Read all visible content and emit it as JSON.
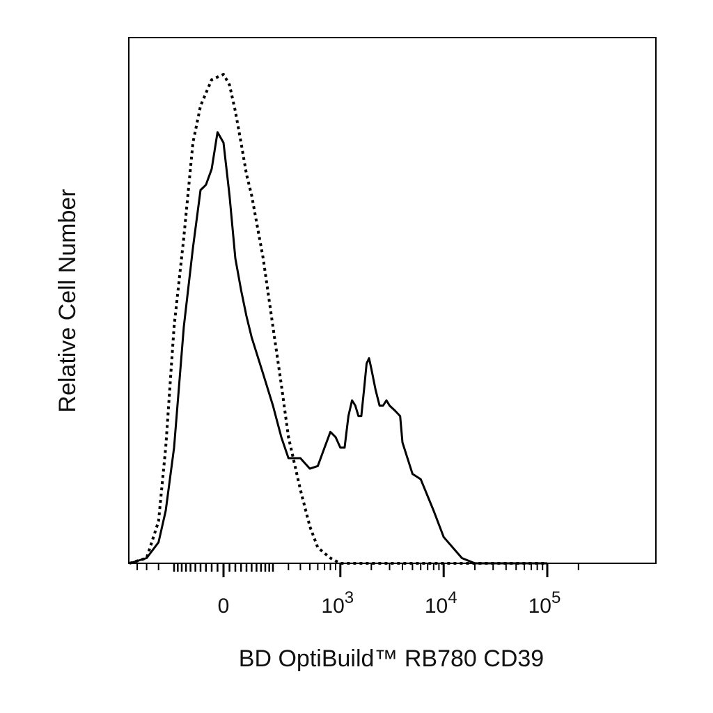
{
  "chart_data": {
    "type": "line",
    "title": "",
    "xlabel": "BD OptiBuild™ RB780 CD39",
    "ylabel": "Relative Cell Number",
    "x_scale": "biexponential",
    "x_ticks": [
      {
        "value": 0,
        "base": "0",
        "exp": ""
      },
      {
        "value": 1000,
        "base": "10",
        "exp": "3"
      },
      {
        "value": 10000,
        "base": "10",
        "exp": "4"
      },
      {
        "value": 100000,
        "base": "10",
        "exp": "5"
      }
    ],
    "ylim": [
      0,
      100
    ],
    "grid": false,
    "legend": "none",
    "series": [
      {
        "style": "solid",
        "points": [
          [
            -600,
            0
          ],
          [
            -400,
            1
          ],
          [
            -300,
            4
          ],
          [
            -250,
            10
          ],
          [
            -200,
            22
          ],
          [
            -150,
            45
          ],
          [
            -110,
            60
          ],
          [
            -80,
            71
          ],
          [
            -60,
            72
          ],
          [
            -40,
            75
          ],
          [
            -20,
            82
          ],
          [
            0,
            80
          ],
          [
            20,
            70
          ],
          [
            40,
            58
          ],
          [
            60,
            52
          ],
          [
            80,
            47
          ],
          [
            100,
            43
          ],
          [
            150,
            36
          ],
          [
            200,
            30
          ],
          [
            250,
            24
          ],
          [
            300,
            20
          ],
          [
            400,
            20
          ],
          [
            500,
            18
          ],
          [
            600,
            18.5
          ],
          [
            700,
            22
          ],
          [
            800,
            25
          ],
          [
            900,
            24
          ],
          [
            1000,
            22
          ],
          [
            1100,
            22
          ],
          [
            1200,
            28
          ],
          [
            1300,
            31
          ],
          [
            1400,
            30
          ],
          [
            1500,
            28
          ],
          [
            1600,
            28
          ],
          [
            1700,
            33
          ],
          [
            1800,
            38
          ],
          [
            1900,
            39
          ],
          [
            2000,
            37
          ],
          [
            2200,
            33
          ],
          [
            2400,
            30
          ],
          [
            2600,
            30
          ],
          [
            2800,
            31
          ],
          [
            3000,
            30
          ],
          [
            3400,
            29
          ],
          [
            3800,
            28
          ],
          [
            4000,
            23
          ],
          [
            5000,
            17
          ],
          [
            6000,
            16
          ],
          [
            8000,
            10
          ],
          [
            10000,
            5
          ],
          [
            15000,
            1
          ],
          [
            20000,
            0
          ],
          [
            100000,
            0
          ]
        ]
      },
      {
        "style": "dotted",
        "points": [
          [
            -600,
            0
          ],
          [
            -400,
            1
          ],
          [
            -300,
            8
          ],
          [
            -250,
            22
          ],
          [
            -200,
            45
          ],
          [
            -150,
            62
          ],
          [
            -110,
            80
          ],
          [
            -80,
            87
          ],
          [
            -40,
            92
          ],
          [
            0,
            93
          ],
          [
            20,
            91
          ],
          [
            40,
            86
          ],
          [
            60,
            80
          ],
          [
            80,
            74
          ],
          [
            100,
            70
          ],
          [
            150,
            58
          ],
          [
            200,
            45
          ],
          [
            250,
            34
          ],
          [
            300,
            24
          ],
          [
            400,
            14
          ],
          [
            500,
            7
          ],
          [
            600,
            3
          ],
          [
            800,
            1
          ],
          [
            1000,
            0
          ],
          [
            100000,
            0
          ]
        ]
      }
    ]
  }
}
